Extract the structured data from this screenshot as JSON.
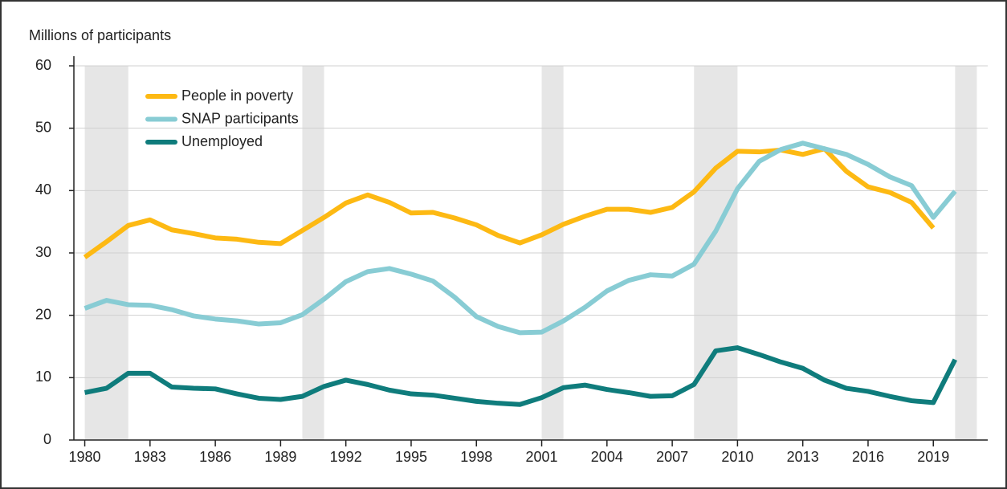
{
  "chart_data": {
    "type": "line",
    "y_label": "Millions of participants",
    "x": [
      1980,
      1981,
      1982,
      1983,
      1984,
      1985,
      1986,
      1987,
      1988,
      1989,
      1990,
      1991,
      1992,
      1993,
      1994,
      1995,
      1996,
      1997,
      1998,
      1999,
      2000,
      2001,
      2002,
      2003,
      2004,
      2005,
      2006,
      2007,
      2008,
      2009,
      2010,
      2011,
      2012,
      2013,
      2014,
      2015,
      2016,
      2017,
      2018,
      2019,
      2020
    ],
    "series": [
      {
        "name": "People in poverty",
        "color": "#fdb913",
        "values": [
          29.3,
          31.8,
          34.4,
          35.3,
          33.7,
          33.1,
          32.4,
          32.2,
          31.7,
          31.5,
          33.6,
          35.7,
          38.0,
          39.3,
          38.1,
          36.4,
          36.5,
          35.6,
          34.5,
          32.8,
          31.6,
          32.9,
          34.6,
          35.9,
          37.0,
          37.0,
          36.5,
          37.3,
          39.8,
          43.6,
          46.3,
          46.2,
          46.5,
          45.8,
          46.7,
          43.1,
          40.6,
          39.7,
          38.1,
          34.0,
          null
        ]
      },
      {
        "name": "SNAP participants",
        "color": "#88ccd4",
        "values": [
          21.1,
          22.4,
          21.7,
          21.6,
          20.9,
          19.9,
          19.4,
          19.1,
          18.6,
          18.8,
          20.1,
          22.6,
          25.4,
          27.0,
          27.5,
          26.6,
          25.5,
          22.9,
          19.8,
          18.2,
          17.2,
          17.3,
          19.1,
          21.3,
          23.9,
          25.6,
          26.5,
          26.3,
          28.2,
          33.5,
          40.3,
          44.7,
          46.6,
          47.6,
          46.7,
          45.8,
          44.2,
          42.2,
          40.8,
          35.7,
          39.9
        ]
      },
      {
        "name": "Unemployed",
        "color": "#0f7c7c",
        "values": [
          7.6,
          8.3,
          10.7,
          10.7,
          8.5,
          8.3,
          8.2,
          7.4,
          6.7,
          6.5,
          7.0,
          8.6,
          9.6,
          8.9,
          8.0,
          7.4,
          7.2,
          6.7,
          6.2,
          5.9,
          5.7,
          6.8,
          8.4,
          8.8,
          8.1,
          7.6,
          7.0,
          7.1,
          8.9,
          14.3,
          14.8,
          13.7,
          12.5,
          11.5,
          9.6,
          8.3,
          7.8,
          7.0,
          6.3,
          6.0,
          12.9
        ]
      }
    ],
    "shaded_periods": [
      [
        1980,
        1982
      ],
      [
        1990,
        1991
      ],
      [
        2001,
        2002
      ],
      [
        2008,
        2010
      ],
      [
        2020,
        2021
      ]
    ],
    "shade_color": "#e6e6e6",
    "xlim": [
      1979.5,
      2021.5
    ],
    "xticks": [
      1980,
      1983,
      1986,
      1989,
      1992,
      1995,
      1998,
      2001,
      2004,
      2007,
      2010,
      2013,
      2016,
      2019
    ],
    "ylim": [
      0,
      60
    ],
    "yticks": [
      0,
      10,
      20,
      30,
      40,
      50,
      60
    ],
    "grid": true,
    "legend": "upper left"
  }
}
